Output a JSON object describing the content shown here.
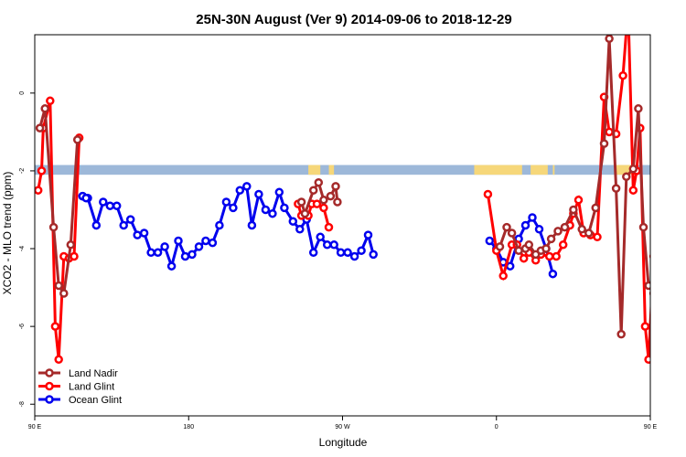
{
  "chart_data": {
    "type": "line",
    "title": "25N-30N August (Ver 9)   2014-09-06 to 2018-12-29",
    "xlabel": "Longitude",
    "ylabel": "XCO2 - MLO trend (ppm)",
    "xlim": [
      90,
      450
    ],
    "ylim": [
      -8.3,
      1.5
    ],
    "x_ticks": [
      {
        "value": 90,
        "label": "90 E"
      },
      {
        "value": 180,
        "label": "180"
      },
      {
        "value": 270,
        "label": "90 W"
      },
      {
        "value": 360,
        "label": "0"
      },
      {
        "value": 450,
        "label": "90 E"
      },
      {
        "value": 540,
        "label": "180"
      }
    ],
    "y_ticks": [
      {
        "value": 0,
        "label": "0"
      },
      {
        "value": -2,
        "label": "-2"
      },
      {
        "value": -4,
        "label": "-4"
      },
      {
        "value": -6,
        "label": "-6"
      },
      {
        "value": -8,
        "label": "-8"
      }
    ],
    "land_ocean_strip": {
      "y_top": -1.85,
      "y_bottom": -2.1,
      "land_color": "#f6d77a",
      "ocean_color": "#9db8d9",
      "land_ranges": [
        [
          250,
          257
        ],
        [
          262,
          265
        ],
        [
          347,
          375
        ],
        [
          380,
          390
        ],
        [
          393,
          394
        ],
        [
          430,
          442
        ]
      ]
    },
    "legend": {
      "position": "bottom-left"
    },
    "series": [
      {
        "name": "Land Nadir",
        "color": "#a52a2a",
        "points": [
          [
            93,
            -0.9
          ],
          [
            96,
            -0.4
          ],
          [
            101,
            -3.45
          ],
          [
            104,
            -4.95
          ],
          [
            107,
            -5.15
          ],
          [
            111,
            -3.9
          ],
          [
            115,
            -1.2
          ],
          [
            246,
            -2.8
          ],
          [
            248,
            -3.1
          ],
          [
            253,
            -2.5
          ],
          [
            256,
            -2.3
          ],
          [
            259,
            -2.75
          ],
          [
            263,
            -2.65
          ],
          [
            266,
            -2.4
          ],
          [
            267,
            -2.8
          ],
          [
            362,
            -3.95
          ],
          [
            366,
            -3.45
          ],
          [
            369,
            -3.6
          ],
          [
            373,
            -4.05
          ],
          [
            377,
            -4.0
          ],
          [
            379,
            -3.9
          ],
          [
            383,
            -4.15
          ],
          [
            386,
            -4.05
          ],
          [
            389,
            -4.0
          ],
          [
            392,
            -3.75
          ],
          [
            396,
            -3.55
          ],
          [
            400,
            -3.45
          ],
          [
            405,
            -3.0
          ],
          [
            410,
            -3.5
          ],
          [
            414,
            -3.6
          ],
          [
            418,
            -2.95
          ],
          [
            423,
            -1.3
          ],
          [
            426,
            1.4
          ],
          [
            430,
            -2.45
          ],
          [
            433,
            -6.2
          ],
          [
            436,
            -2.15
          ],
          [
            440,
            -1.95
          ],
          [
            443,
            -0.4
          ],
          [
            446,
            -3.45
          ],
          [
            449,
            -4.95
          ],
          [
            452,
            -5.15
          ],
          [
            456,
            -3.9
          ],
          [
            460,
            -1.2
          ]
        ]
      },
      {
        "name": "Land Glint",
        "color": "#ff0000",
        "points": [
          [
            92,
            -2.5
          ],
          [
            94,
            -2.0
          ],
          [
            95,
            -0.9
          ],
          [
            99,
            -0.2
          ],
          [
            102,
            -6.0
          ],
          [
            104,
            -6.85
          ],
          [
            107,
            -4.2
          ],
          [
            110,
            -4.25
          ],
          [
            113,
            -4.2
          ],
          [
            116,
            -1.15
          ],
          [
            244,
            -2.85
          ],
          [
            246,
            -3.15
          ],
          [
            250,
            -3.15
          ],
          [
            252,
            -2.85
          ],
          [
            255,
            -2.85
          ],
          [
            259,
            -2.95
          ],
          [
            262,
            -3.45
          ],
          [
            355,
            -2.6
          ],
          [
            360,
            -4.05
          ],
          [
            364,
            -4.7
          ],
          [
            369,
            -3.9
          ],
          [
            372,
            -3.9
          ],
          [
            376,
            -4.25
          ],
          [
            379,
            -4.1
          ],
          [
            383,
            -4.3
          ],
          [
            386,
            -4.15
          ],
          [
            391,
            -4.2
          ],
          [
            395,
            -4.2
          ],
          [
            399,
            -3.9
          ],
          [
            403,
            -3.4
          ],
          [
            405,
            -3.1
          ],
          [
            408,
            -2.75
          ],
          [
            411,
            -3.6
          ],
          [
            415,
            -3.65
          ],
          [
            419,
            -3.7
          ],
          [
            423,
            -0.1
          ],
          [
            426,
            -1.0
          ],
          [
            430,
            -1.05
          ],
          [
            434,
            0.45
          ],
          [
            437,
            2.2
          ],
          [
            440,
            -2.5
          ],
          [
            442,
            -2.0
          ],
          [
            444,
            -0.9
          ],
          [
            447,
            -6.0
          ],
          [
            449,
            -6.85
          ],
          [
            452,
            -4.2
          ],
          [
            455,
            -4.25
          ],
          [
            458,
            -4.2
          ],
          [
            461,
            -1.15
          ]
        ]
      },
      {
        "name": "Ocean Glint",
        "color": "#0000ee",
        "points": [
          [
            118,
            -2.65
          ],
          [
            121,
            -2.7
          ],
          [
            126,
            -3.4
          ],
          [
            130,
            -2.8
          ],
          [
            134,
            -2.9
          ],
          [
            138,
            -2.9
          ],
          [
            142,
            -3.4
          ],
          [
            146,
            -3.25
          ],
          [
            150,
            -3.65
          ],
          [
            154,
            -3.6
          ],
          [
            158,
            -4.1
          ],
          [
            162,
            -4.1
          ],
          [
            166,
            -3.95
          ],
          [
            170,
            -4.45
          ],
          [
            174,
            -3.8
          ],
          [
            178,
            -4.2
          ],
          [
            182,
            -4.15
          ],
          [
            186,
            -3.95
          ],
          [
            190,
            -3.8
          ],
          [
            194,
            -3.85
          ],
          [
            198,
            -3.4
          ],
          [
            202,
            -2.8
          ],
          [
            206,
            -2.95
          ],
          [
            210,
            -2.5
          ],
          [
            214,
            -2.4
          ],
          [
            217,
            -3.4
          ],
          [
            221,
            -2.6
          ],
          [
            225,
            -3.0
          ],
          [
            229,
            -3.1
          ],
          [
            233,
            -2.55
          ],
          [
            236,
            -2.95
          ],
          [
            241,
            -3.3
          ],
          [
            245,
            -3.5
          ],
          [
            249,
            -3.25
          ],
          [
            253,
            -4.1
          ],
          [
            257,
            -3.7
          ],
          [
            261,
            -3.9
          ],
          [
            265,
            -3.9
          ],
          [
            269,
            -4.1
          ],
          [
            273,
            -4.1
          ],
          [
            277,
            -4.2
          ],
          [
            281,
            -4.05
          ],
          [
            285,
            -3.65
          ],
          [
            288,
            -4.15
          ],
          [
            356,
            -3.8
          ],
          [
            360,
            -4.0
          ],
          [
            364,
            -4.35
          ],
          [
            368,
            -4.45
          ],
          [
            373,
            -3.75
          ],
          [
            377,
            -3.4
          ],
          [
            381,
            -3.2
          ],
          [
            385,
            -3.5
          ],
          [
            389,
            -4.0
          ],
          [
            393,
            -4.65
          ],
          [
            118,
            -2.65
          ],
          [
            120,
            -2.7
          ]
        ]
      }
    ]
  }
}
